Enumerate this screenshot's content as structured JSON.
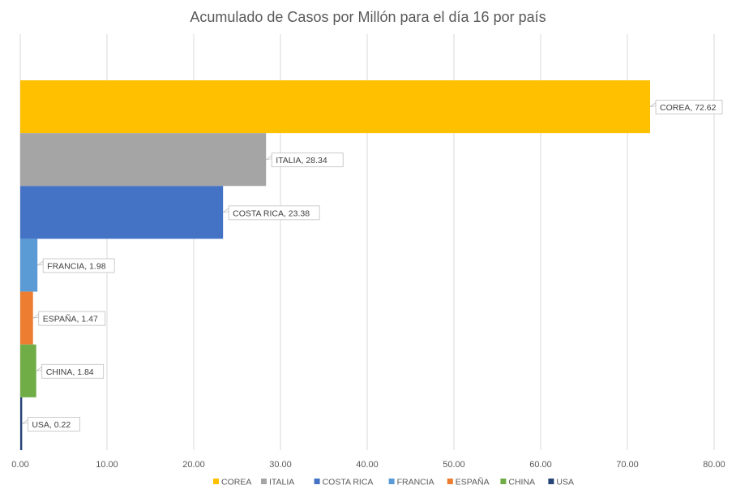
{
  "chart_data": {
    "type": "bar",
    "orientation": "horizontal",
    "title": "Acumulado de Casos por Millón para el día 16 por país",
    "xlabel": "",
    "ylabel": "",
    "xlim": [
      0,
      80
    ],
    "x_ticks": [
      "0.00",
      "10.00",
      "20.00",
      "30.00",
      "40.00",
      "50.00",
      "60.00",
      "70.00",
      "80.00"
    ],
    "grid": true,
    "legend_position": "bottom",
    "series": [
      {
        "name": "COREA",
        "value": 72.62,
        "label": "COREA, 72.62",
        "color": "#FFC000"
      },
      {
        "name": "ITALIA",
        "value": 28.34,
        "label": "ITALIA, 28.34",
        "color": "#A5A5A5"
      },
      {
        "name": "COSTA RICA",
        "value": 23.38,
        "label": "COSTA RICA, 23.38",
        "color": "#4472C4"
      },
      {
        "name": "FRANCIA",
        "value": 1.98,
        "label": "FRANCIA, 1.98",
        "color": "#5B9BD5"
      },
      {
        "name": "ESPAÑA",
        "value": 1.47,
        "label": "ESPAÑA, 1.47",
        "color": "#ED7D31"
      },
      {
        "name": "CHINA",
        "value": 1.84,
        "label": "CHINA, 1.84",
        "color": "#70AD47"
      },
      {
        "name": "USA",
        "value": 0.22,
        "label": "USA, 0.22",
        "color": "#264478"
      }
    ]
  }
}
